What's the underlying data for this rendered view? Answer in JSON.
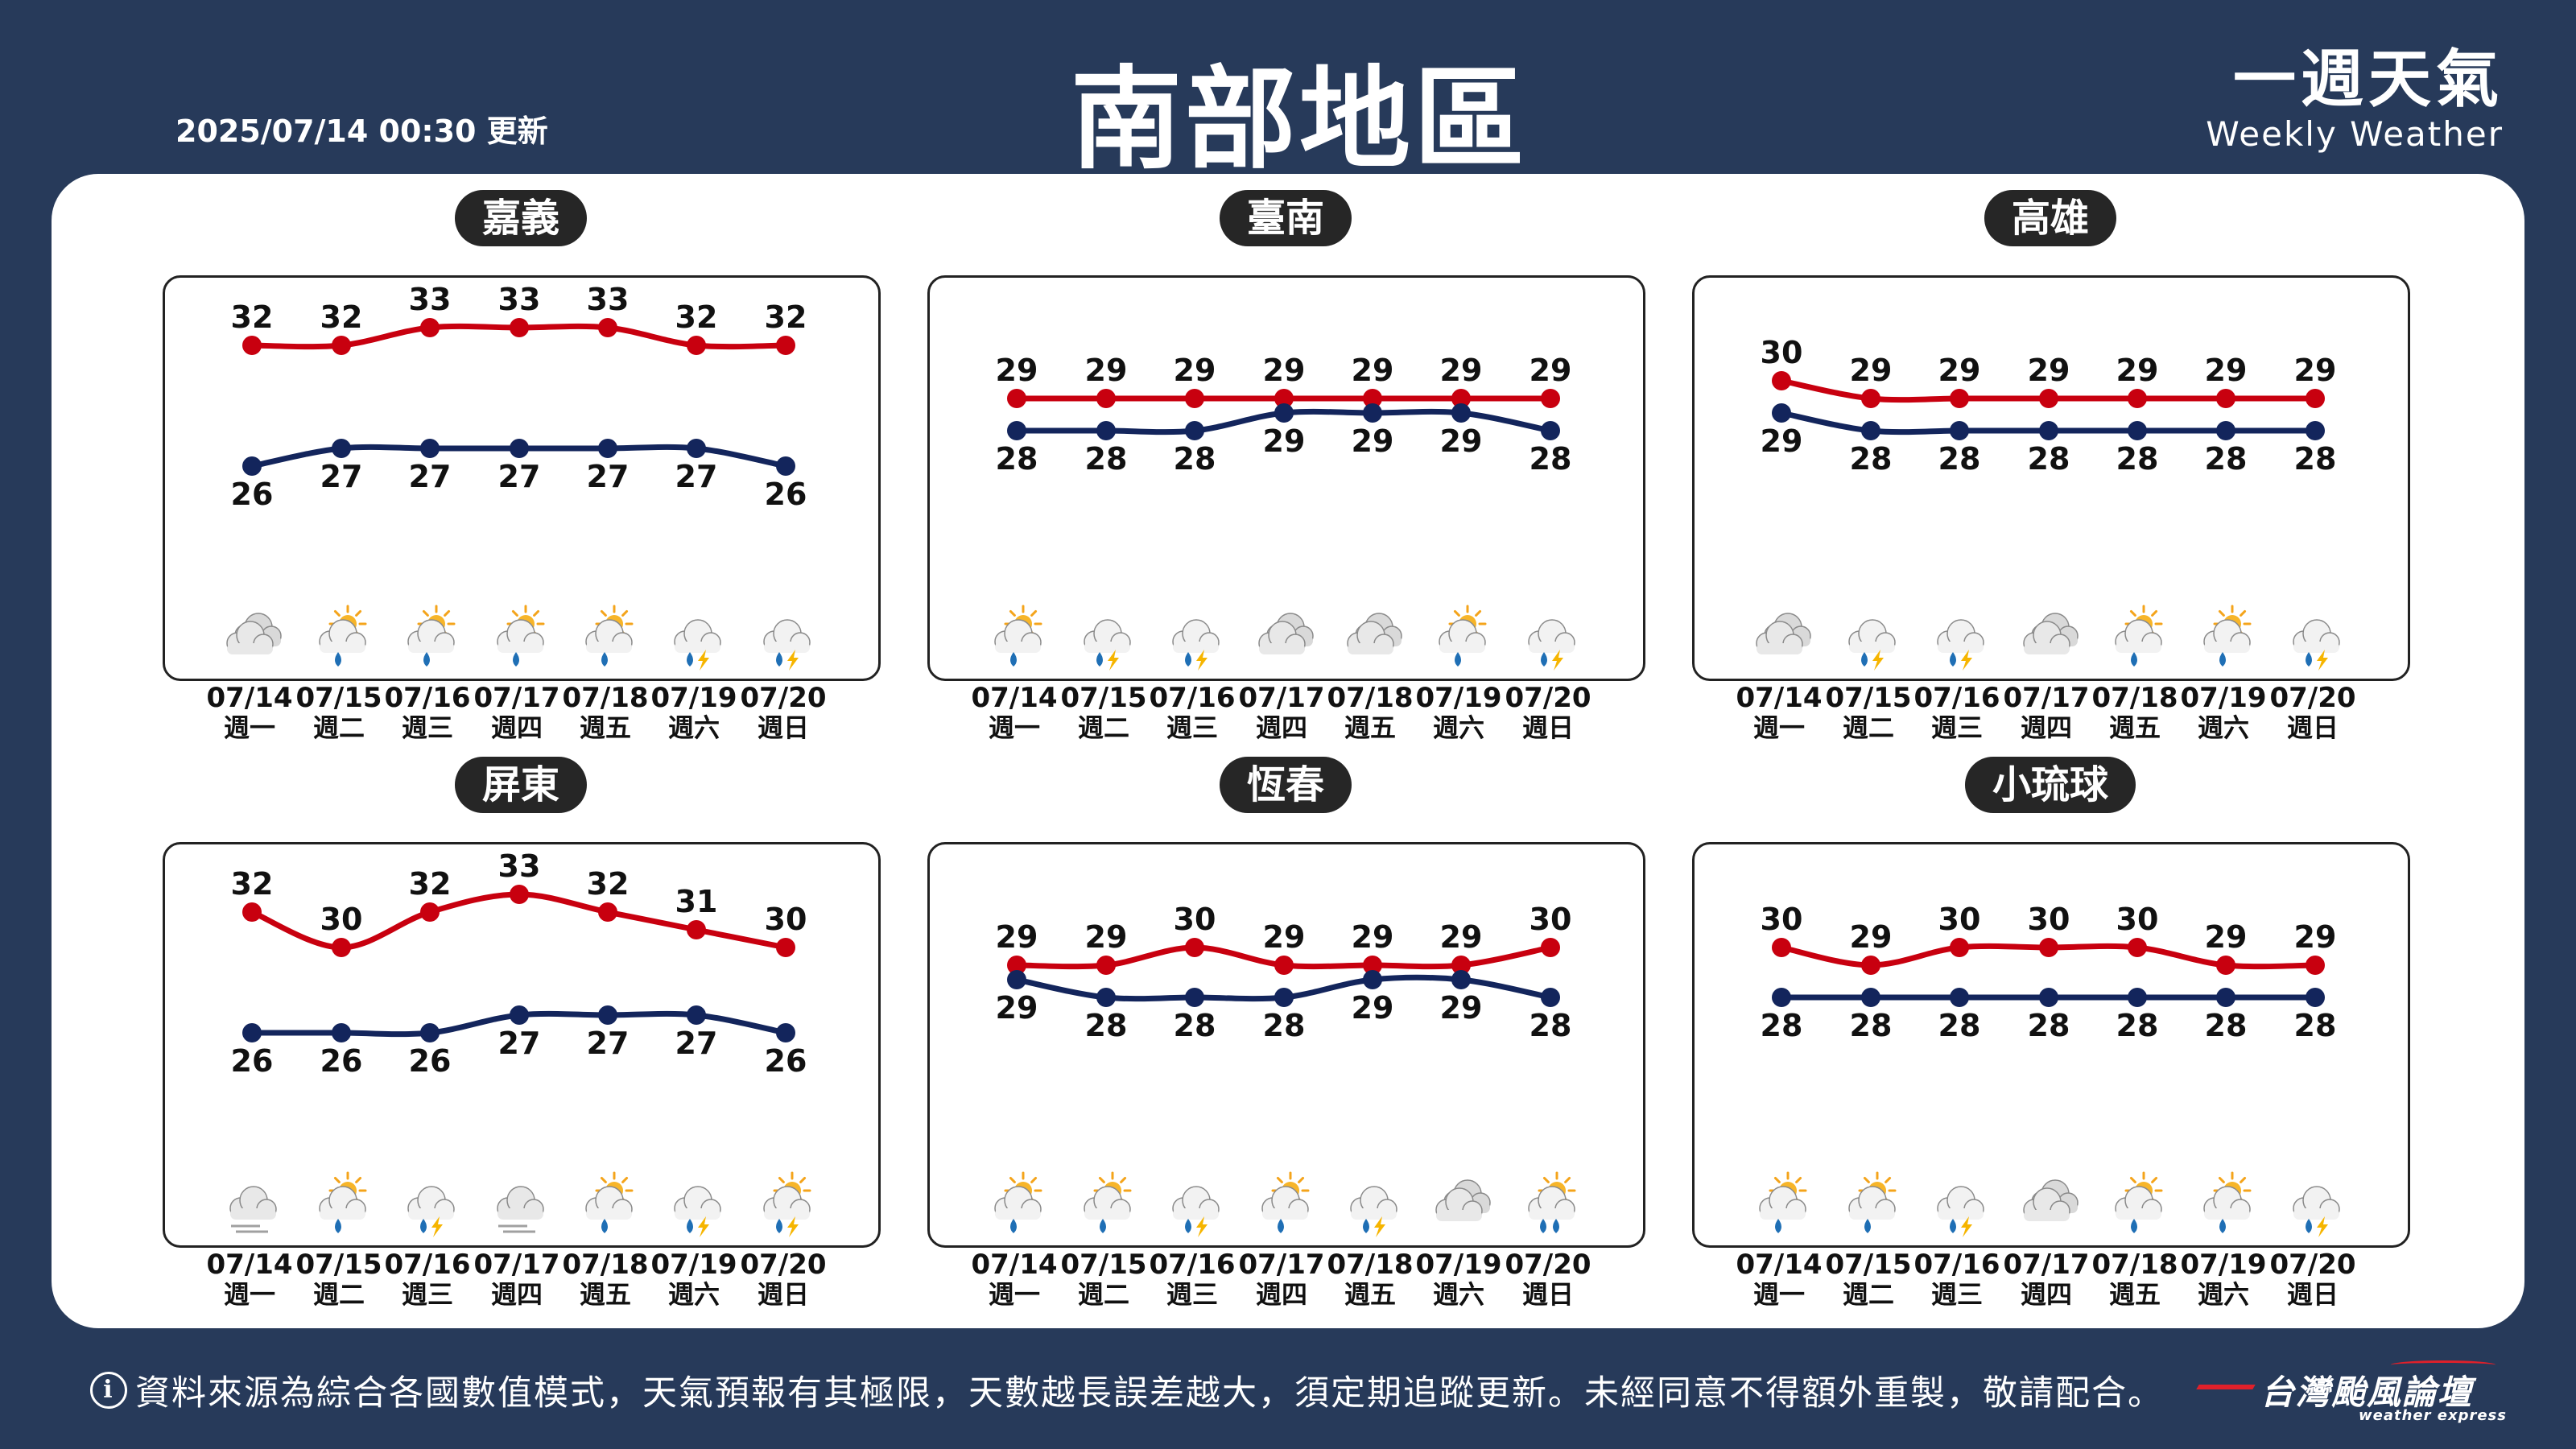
{
  "header": {
    "update_time": "2025/07/14 00:30 更新",
    "title": "南部地區",
    "brand_zh": "一週天氣",
    "brand_en": "Weekly Weather"
  },
  "colors": {
    "background": "#273a5a",
    "high_line": "#c8000f",
    "low_line": "#13255c"
  },
  "days": [
    {
      "date": "07/14",
      "weekday": "週一"
    },
    {
      "date": "07/15",
      "weekday": "週二"
    },
    {
      "date": "07/16",
      "weekday": "週三"
    },
    {
      "date": "07/17",
      "weekday": "週四"
    },
    {
      "date": "07/18",
      "weekday": "週五"
    },
    {
      "date": "07/19",
      "weekday": "週六"
    },
    {
      "date": "07/20",
      "weekday": "週日"
    }
  ],
  "regions": [
    {
      "name": "嘉義",
      "high": [
        32,
        32,
        33,
        33,
        33,
        32,
        32
      ],
      "low": [
        26,
        27,
        27,
        27,
        27,
        27,
        26
      ],
      "icons": [
        "cloudy",
        "sun-rain",
        "sun-rain",
        "sun-rain",
        "sun-rain",
        "thunder-rain",
        "thunder-rain"
      ]
    },
    {
      "name": "臺南",
      "high": [
        29,
        29,
        29,
        29,
        29,
        29,
        29
      ],
      "low": [
        28,
        28,
        28,
        29,
        29,
        29,
        28
      ],
      "icons": [
        "sun-rain",
        "thunder-rain",
        "thunder-rain",
        "cloudy",
        "cloudy",
        "sun-rain",
        "thunder-rain"
      ]
    },
    {
      "name": "高雄",
      "high": [
        30,
        29,
        29,
        29,
        29,
        29,
        29
      ],
      "low": [
        29,
        28,
        28,
        28,
        28,
        28,
        28
      ],
      "icons": [
        "cloudy",
        "thunder-rain",
        "thunder-rain",
        "cloudy",
        "sun-rain",
        "sun-rain",
        "thunder-rain"
      ]
    },
    {
      "name": "屏東",
      "high": [
        32,
        30,
        32,
        33,
        32,
        31,
        30
      ],
      "low": [
        26,
        26,
        26,
        27,
        27,
        27,
        26
      ],
      "icons": [
        "fog",
        "sun-rain",
        "thunder-rain",
        "fog",
        "sun-rain",
        "thunder-rain",
        "sun-thunder-rain"
      ]
    },
    {
      "name": "恆春",
      "high": [
        29,
        29,
        30,
        29,
        29,
        29,
        30
      ],
      "low": [
        29,
        28,
        28,
        28,
        29,
        29,
        28
      ],
      "icons": [
        "sun-rain",
        "sun-rain",
        "thunder-rain",
        "sun-rain",
        "thunder-rain",
        "cloudy",
        "sun-heavy-rain"
      ]
    },
    {
      "name": "小琉球",
      "high": [
        30,
        29,
        30,
        30,
        30,
        29,
        29
      ],
      "low": [
        28,
        28,
        28,
        28,
        28,
        28,
        28
      ],
      "icons": [
        "sun-rain",
        "sun-rain",
        "thunder-rain",
        "cloudy",
        "sun-rain",
        "sun-rain",
        "thunder-rain"
      ]
    }
  ],
  "footer": {
    "info_glyph": "i",
    "disclaimer": "資料來源為綜合各國數值模式，天氣預報有其極限，天數越長誤差越大，須定期追蹤更新。未經同意不得額外重製，敬請配合。",
    "logo_text": "台灣颱風論壇",
    "logo_sub": "weather express"
  }
}
